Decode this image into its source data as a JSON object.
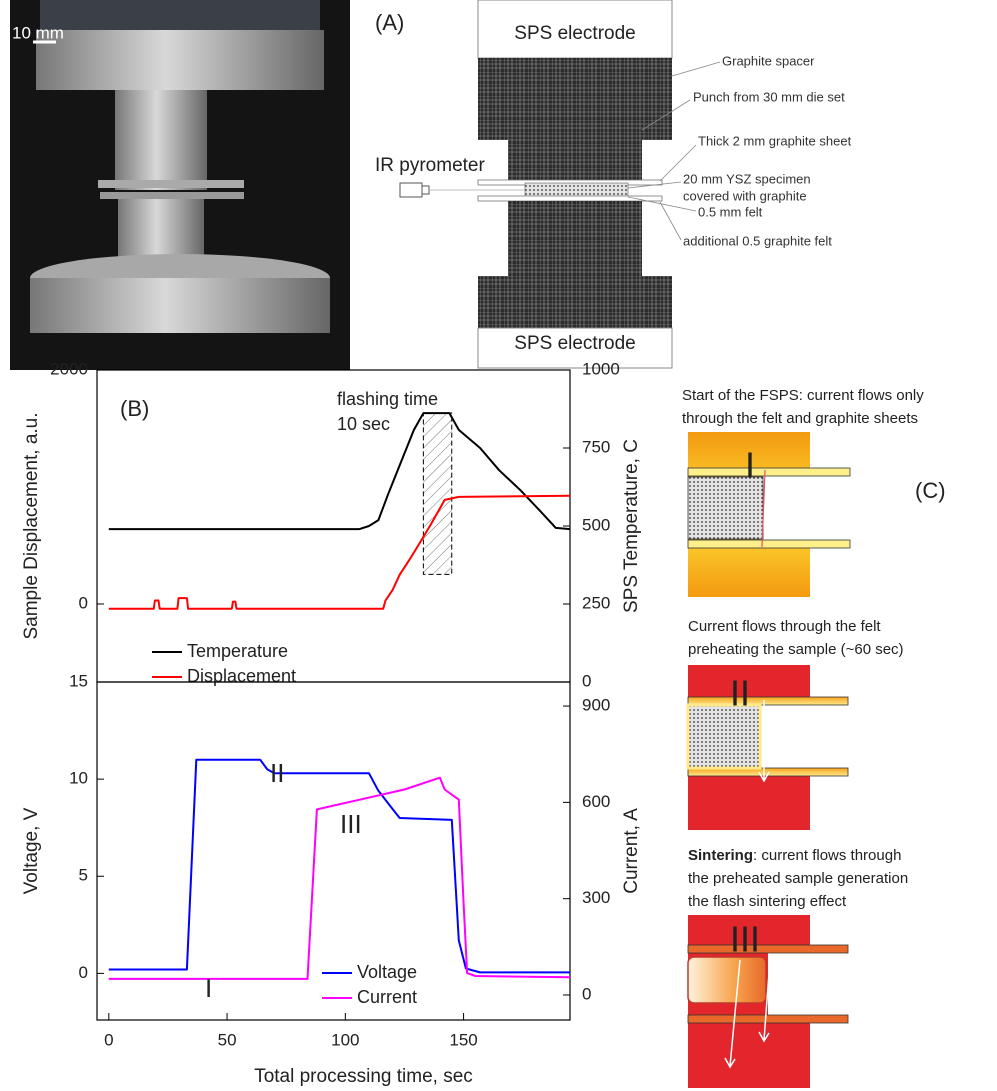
{
  "panel_a": {
    "scale_bar": "10 mm",
    "label": "(A)",
    "electrodes": [
      "SPS electrode",
      "SPS electrode"
    ],
    "pyrometer": "IR pyrometer",
    "callouts": [
      "Graphite spacer",
      "Punch from 30 mm die set",
      "Thick 2 mm graphite sheet",
      "20 mm YSZ specimen",
      "covered with graphite",
      "0.5 mm felt",
      "additional 0.5 graphite felt"
    ]
  },
  "chart_data": [
    {
      "type": "line",
      "panel_label": "(B)",
      "xlim": [
        -5,
        195
      ],
      "ylabel": "Sample Displacement, a.u.",
      "ylim": [
        -667,
        2000
      ],
      "yticks": [
        0,
        2000
      ],
      "y2label": "SPS Temperature, C",
      "y2lim": [
        0,
        1000
      ],
      "y2ticks": [
        0,
        250,
        500,
        750,
        1000
      ],
      "legend": "lower left",
      "annotations": [
        "flashing time",
        "10 sec"
      ],
      "highlight": {
        "x": [
          133,
          145
        ],
        "y2": [
          345,
          862
        ]
      },
      "series": [
        {
          "name": "Temperature",
          "color": "#000000",
          "axis": "y2",
          "x": [
            0,
            106,
            110,
            114,
            118,
            123,
            129,
            133,
            144,
            148,
            157,
            165,
            174,
            182,
            189,
            195
          ],
          "values": [
            490,
            490,
            500,
            519,
            600,
            695,
            808,
            862,
            862,
            808,
            750,
            679,
            615,
            551,
            494,
            490
          ]
        },
        {
          "name": "Displacement",
          "color": "#ff0000",
          "x": [
            0,
            19,
            19.5,
            21,
            21.5,
            29,
            29.5,
            33,
            33.5,
            52,
            52.5,
            53.5,
            54,
            116,
            117,
            120,
            123,
            127,
            131,
            136,
            142,
            148,
            195
          ],
          "values": [
            -40,
            -40,
            30,
            30,
            -40,
            -40,
            50,
            50,
            -40,
            -40,
            20,
            20,
            -40,
            -40,
            30,
            120,
            250,
            375,
            505,
            675,
            890,
            915,
            925
          ]
        }
      ]
    },
    {
      "type": "line",
      "xlabel": "Total processing time, sec",
      "xlim": [
        -5,
        195
      ],
      "xticks": [
        0,
        50,
        100,
        150
      ],
      "ylabel": "Voltage, V",
      "ylim": [
        -2.4,
        15
      ],
      "yticks": [
        0,
        5,
        10,
        15
      ],
      "y2label": "Current, A",
      "y2lim": [
        -78,
        975
      ],
      "y2ticks": [
        0,
        300,
        600,
        900
      ],
      "legend": "lower center",
      "annotations": [
        "I",
        "II",
        "III"
      ],
      "series": [
        {
          "name": "Voltage",
          "color": "#0000ff",
          "x": [
            0,
            33,
            37,
            64,
            67,
            70,
            110,
            114,
            121,
            123,
            145,
            146.5,
            148,
            151,
            157,
            195
          ],
          "values": [
            0.2,
            0.2,
            11.0,
            11.0,
            10.5,
            10.3,
            10.3,
            9.4,
            8.3,
            8.0,
            7.9,
            4.8,
            1.7,
            0.25,
            0.05,
            0.05
          ]
        },
        {
          "name": "Current",
          "color": "#ff00ff",
          "axis": "y2",
          "x": [
            0,
            84,
            88,
            125,
            140,
            142,
            146,
            148,
            150,
            151.5,
            155,
            195
          ],
          "values": [
            50,
            50,
            578,
            640,
            677,
            640,
            619,
            609,
            285,
            68,
            59,
            55
          ]
        }
      ]
    }
  ],
  "panel_c": {
    "label": "(C)",
    "stages": [
      {
        "lines": [
          "Start of the FSPS: current flows only",
          "through the felt and graphite sheets"
        ],
        "numeral": "I"
      },
      {
        "lines": [
          "Current flows through the felt",
          "preheating the sample (~60 sec)"
        ],
        "numeral": "II"
      },
      {
        "lead": "Sintering",
        "lines": [
          ": current flows through",
          "the preheated sample generation",
          "the flash sintering effect"
        ],
        "numeral": "III"
      }
    ]
  }
}
